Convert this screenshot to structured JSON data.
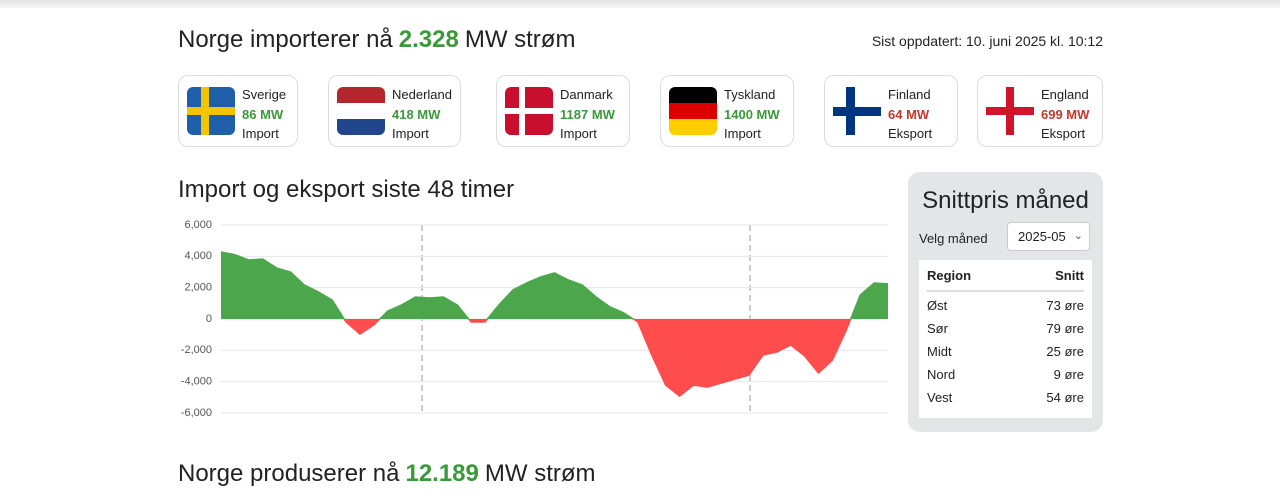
{
  "header": {
    "title_prefix": "Norge importerer nå",
    "import_value": "2.328",
    "title_suffix": "MW strøm",
    "updated": "Sist oppdatert: 10. juni 2025 kl. 10:12"
  },
  "countries": [
    {
      "name": "Sverige",
      "value": "86 MW",
      "status": "Import",
      "color": "#3a9a3a"
    },
    {
      "name": "Nederland",
      "value": "418 MW",
      "status": "Import",
      "color": "#3a9a3a"
    },
    {
      "name": "Danmark",
      "value": "1187 MW",
      "status": "Import",
      "color": "#3a9a3a"
    },
    {
      "name": "Tyskland",
      "value": "1400 MW",
      "status": "Import",
      "color": "#3a9a3a"
    },
    {
      "name": "Finland",
      "value": "64 MW",
      "status": "Eksport",
      "color": "#c0392b"
    },
    {
      "name": "England",
      "value": "699 MW",
      "status": "Eksport",
      "color": "#c0392b"
    }
  ],
  "chart_data": {
    "type": "area",
    "title": "Import og eksport siste 48 timer",
    "x": [
      0,
      1,
      2,
      3,
      4,
      5,
      6,
      7,
      8,
      9,
      10,
      11,
      12,
      13,
      14,
      15,
      16,
      17,
      18,
      19,
      20,
      21,
      22,
      23,
      24,
      25,
      26,
      27,
      28,
      29,
      30,
      31,
      32,
      33,
      34,
      35,
      36,
      37,
      38,
      39,
      40,
      41,
      42,
      43,
      44,
      45,
      46,
      47,
      48
    ],
    "values": [
      4280,
      4100,
      3770,
      3830,
      3260,
      3000,
      2170,
      1730,
      1210,
      -190,
      -960,
      -380,
      510,
      900,
      1400,
      1340,
      1400,
      900,
      -190,
      -190,
      900,
      1850,
      2300,
      2680,
      2940,
      2490,
      2170,
      1400,
      770,
      380,
      -190,
      -2300,
      -4220,
      -4920,
      -4220,
      -4350,
      -4090,
      -3830,
      -3580,
      -2300,
      -2110,
      -1660,
      -2360,
      -3450,
      -2620,
      -700,
      1530,
      2300,
      2240
    ],
    "xlim": [
      0,
      48
    ],
    "ylim": [
      -6000,
      6000
    ],
    "yticks": [
      {
        "value": -6000,
        "label": "-6,000"
      },
      {
        "value": -4000,
        "label": "-4,000"
      },
      {
        "value": -2000,
        "label": "-2,000"
      },
      0,
      {
        "value": 2000,
        "label": "2,000"
      },
      {
        "value": 4000,
        "label": "4,000"
      },
      {
        "value": 6000,
        "label": "6,000"
      }
    ],
    "grid": true,
    "positive_color": "#4ca64c",
    "negative_color": "#ff4d4d"
  },
  "price_panel": {
    "title": "Snittpris måned",
    "select_label": "Velg måned",
    "selected_month": "2025-05",
    "table": {
      "columns": [
        "Region",
        "Snitt"
      ],
      "rows": [
        [
          "Øst",
          "73 øre"
        ],
        [
          "Sør",
          "79 øre"
        ],
        [
          "Midt",
          "25 øre"
        ],
        [
          "Nord",
          "9 øre"
        ],
        [
          "Vest",
          "54 øre"
        ]
      ]
    }
  },
  "footer": {
    "title_prefix": "Norge produserer nå",
    "production_value": "12.189",
    "title_suffix": "MW strøm"
  }
}
